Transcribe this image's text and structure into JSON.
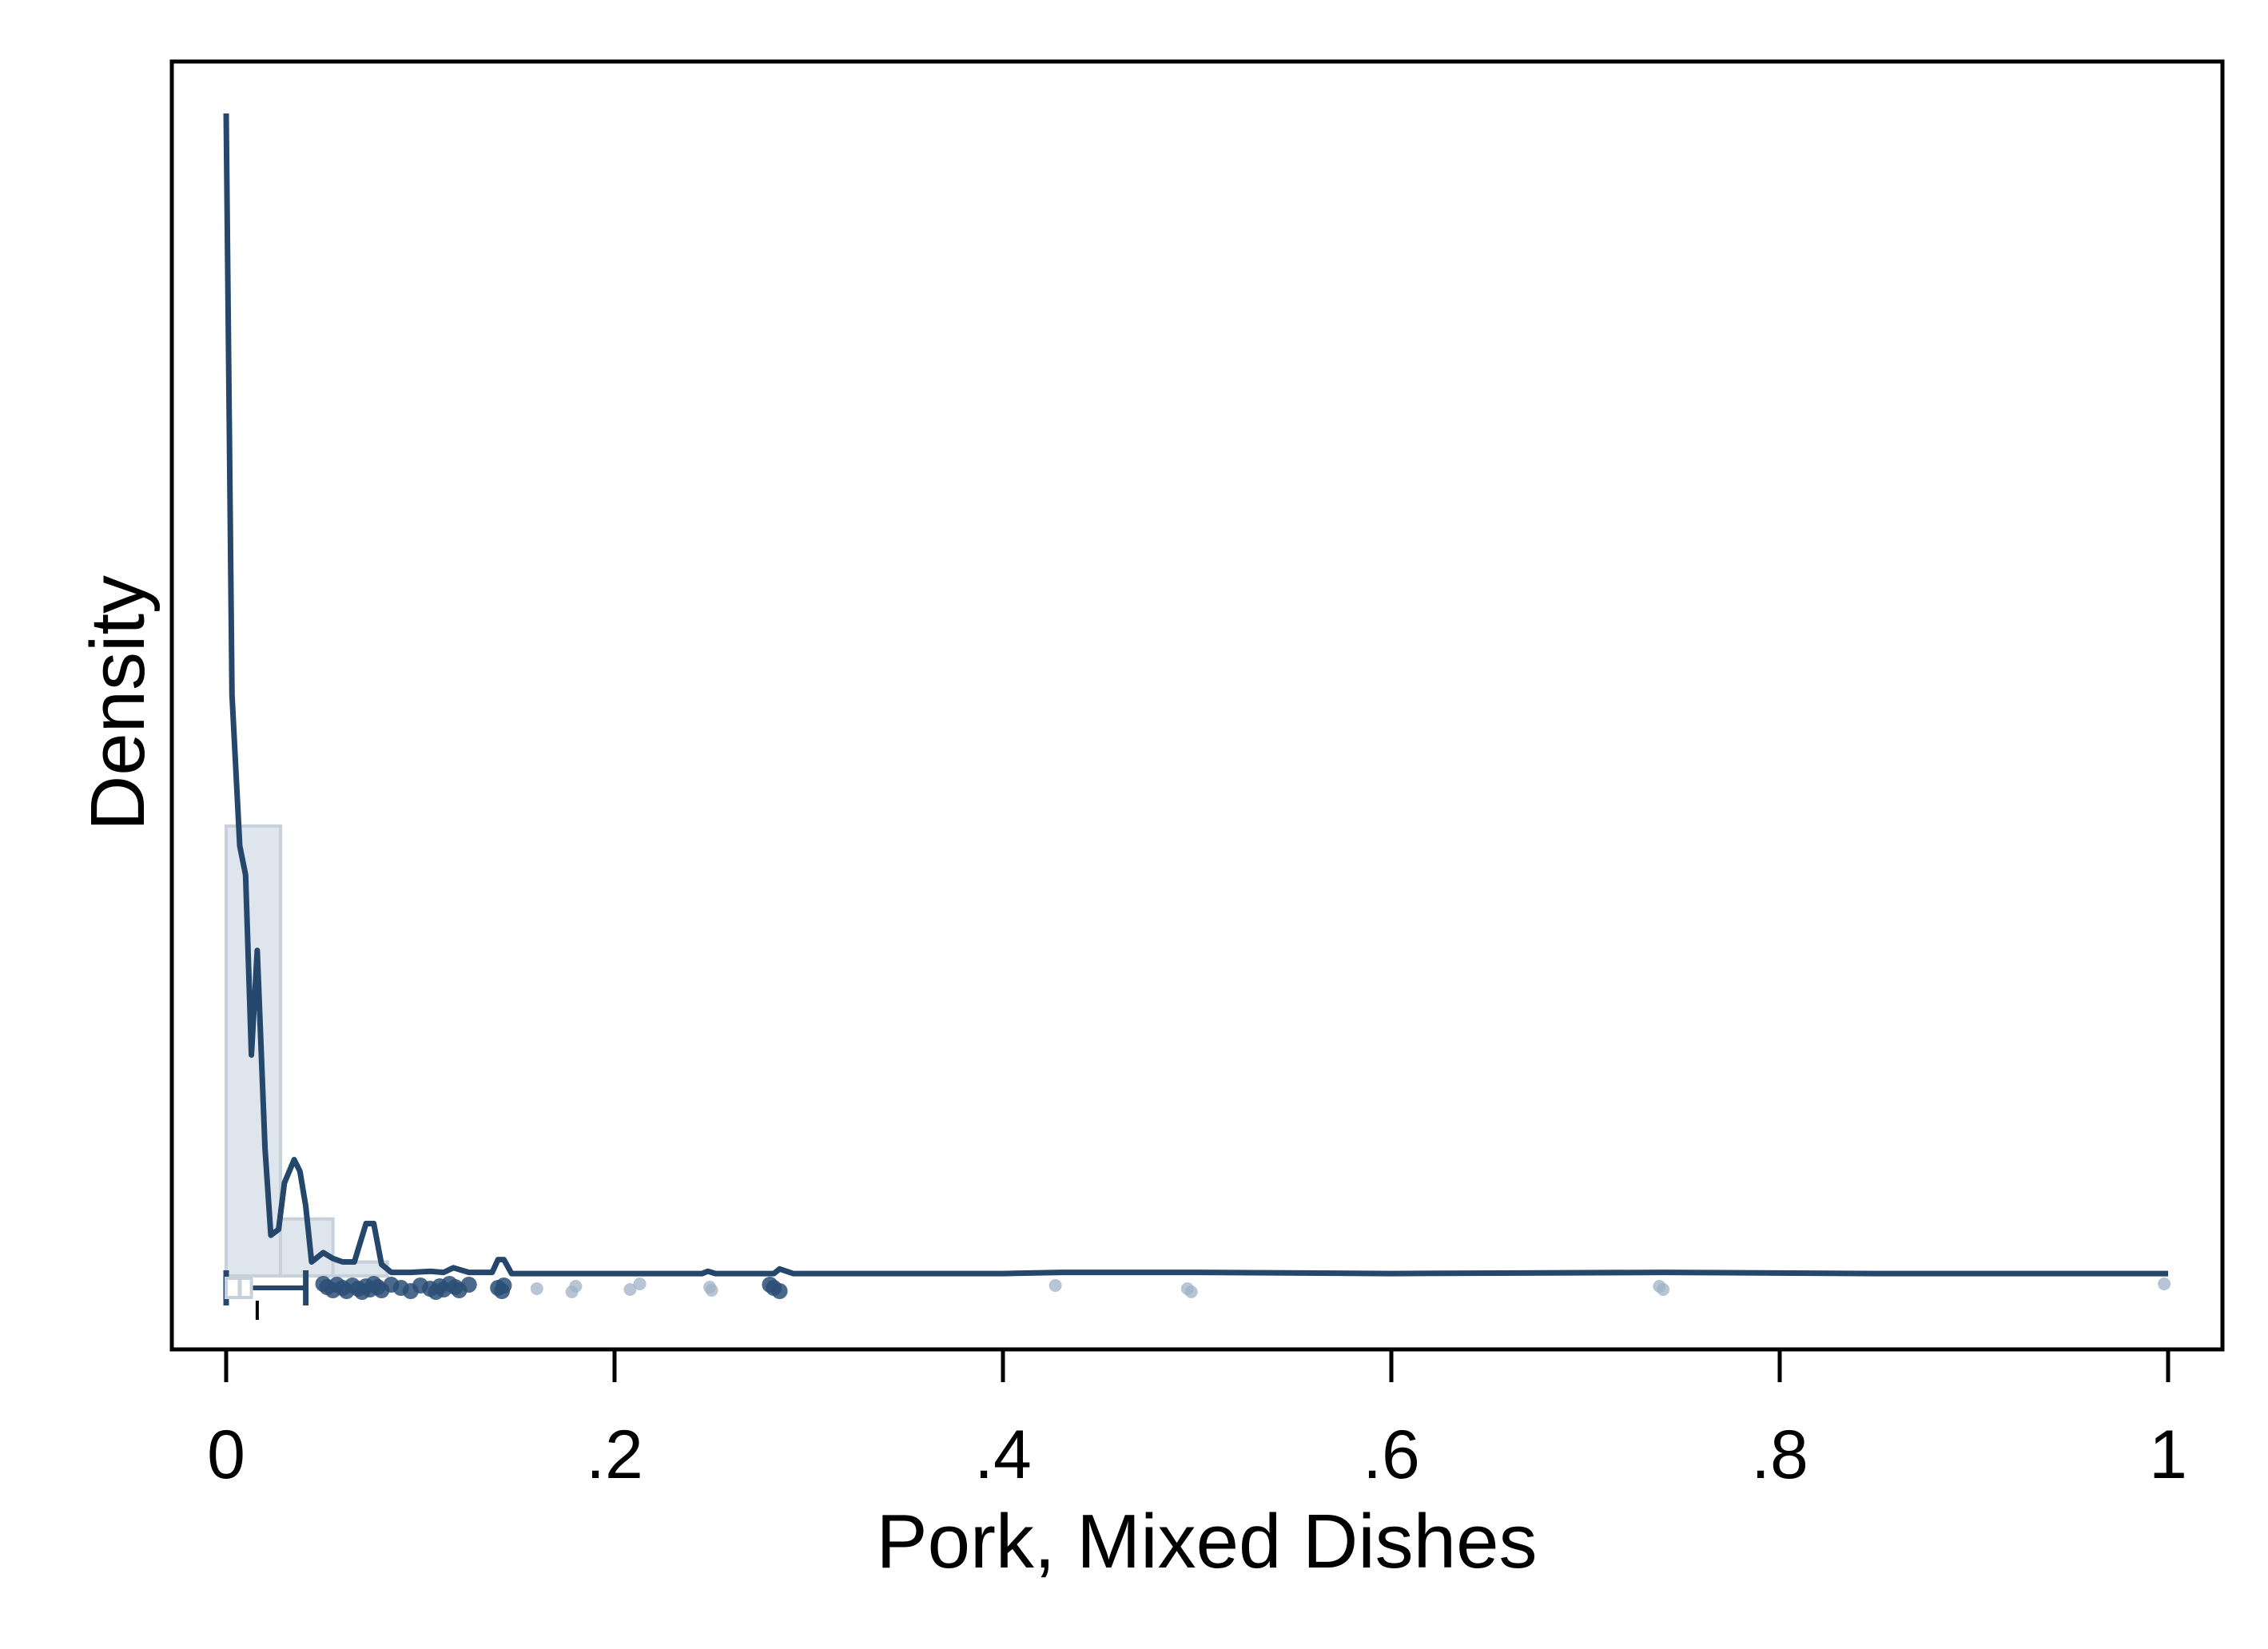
{
  "chart_data": {
    "type": "histogram-density",
    "title": "",
    "xlabel": "Pork, Mixed Dishes",
    "ylabel": "Density",
    "xlim": [
      -0.028,
      1.028
    ],
    "ylim": [
      -0.0,
      1.0
    ],
    "x_ticks": [
      0,
      0.2,
      0.4,
      0.6,
      0.8,
      1.0
    ],
    "x_tick_labels": [
      "0",
      ".2",
      ".4",
      ".6",
      ".8",
      "1"
    ],
    "y_ticks": [],
    "grid": false,
    "legend": "none",
    "histogram_bins": [
      {
        "x0": 0.0,
        "x1": 0.028,
        "height": 0.387
      },
      {
        "x0": 0.028,
        "x1": 0.055,
        "height": 0.049
      },
      {
        "x0": 0.055,
        "x1": 0.083,
        "height": 0.012
      }
    ],
    "density_curve": [
      [
        0.0,
        1.0
      ],
      [
        0.003,
        0.5
      ],
      [
        0.007,
        0.37
      ],
      [
        0.01,
        0.345
      ],
      [
        0.013,
        0.19
      ],
      [
        0.016,
        0.28
      ],
      [
        0.02,
        0.11
      ],
      [
        0.023,
        0.035
      ],
      [
        0.027,
        0.04
      ],
      [
        0.03,
        0.08
      ],
      [
        0.035,
        0.1
      ],
      [
        0.038,
        0.09
      ],
      [
        0.041,
        0.06
      ],
      [
        0.044,
        0.012
      ],
      [
        0.05,
        0.02
      ],
      [
        0.055,
        0.015
      ],
      [
        0.06,
        0.012
      ],
      [
        0.066,
        0.012
      ],
      [
        0.072,
        0.045
      ],
      [
        0.076,
        0.045
      ],
      [
        0.08,
        0.01
      ],
      [
        0.085,
        0.003
      ],
      [
        0.095,
        0.003
      ],
      [
        0.105,
        0.004
      ],
      [
        0.112,
        0.003
      ],
      [
        0.117,
        0.007
      ],
      [
        0.125,
        0.003
      ],
      [
        0.137,
        0.003
      ],
      [
        0.14,
        0.014
      ],
      [
        0.143,
        0.014
      ],
      [
        0.147,
        0.002
      ],
      [
        0.2,
        0.002
      ],
      [
        0.245,
        0.002
      ],
      [
        0.248,
        0.004
      ],
      [
        0.252,
        0.002
      ],
      [
        0.282,
        0.002
      ],
      [
        0.285,
        0.006
      ],
      [
        0.292,
        0.002
      ],
      [
        0.4,
        0.002
      ],
      [
        0.43,
        0.003
      ],
      [
        0.5,
        0.003
      ],
      [
        0.6,
        0.002
      ],
      [
        0.74,
        0.003
      ],
      [
        0.85,
        0.002
      ],
      [
        1.0,
        0.002
      ]
    ],
    "jittered_points": [
      0.05,
      0.052,
      0.055,
      0.057,
      0.06,
      0.062,
      0.065,
      0.068,
      0.07,
      0.072,
      0.074,
      0.076,
      0.078,
      0.08,
      0.085,
      0.09,
      0.095,
      0.1,
      0.105,
      0.108,
      0.11,
      0.112,
      0.115,
      0.118,
      0.12,
      0.125,
      0.14,
      0.142,
      0.143,
      0.16,
      0.178,
      0.18,
      0.208,
      0.213,
      0.249,
      0.25,
      0.28,
      0.282,
      0.285,
      0.427,
      0.495,
      0.497,
      0.738,
      0.74,
      0.998
    ],
    "boxplot": {
      "whisker_low": 0.0,
      "q1": 0.0,
      "median": 0.007,
      "q3": 0.013,
      "whisker_high": 0.041,
      "mean": 0.016
    },
    "colors": {
      "line": "#24476b",
      "hist_fill": "#dfe5ec",
      "hist_stroke": "#c7d1dc",
      "points_light": "#9fb1c5",
      "points_dark": "#2b4f76",
      "axis": "#000000"
    }
  }
}
